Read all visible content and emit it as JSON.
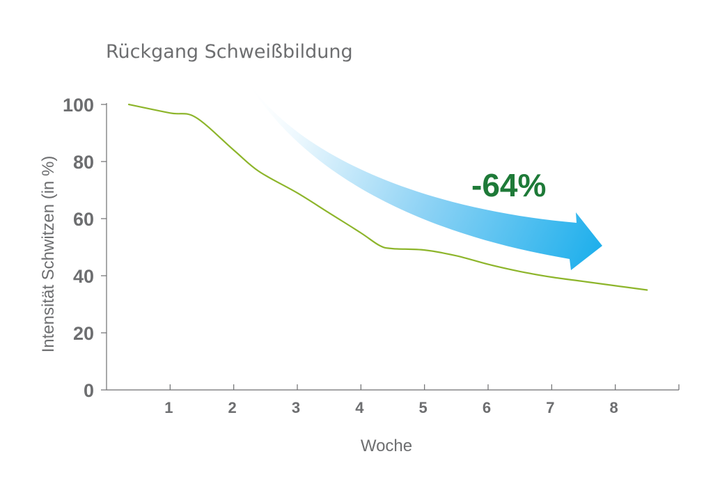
{
  "chart_data": {
    "type": "line",
    "title": "Rückgang Schweißbildung",
    "xlabel": "Woche",
    "ylabel": "Intensität Schwitzen (in %)",
    "xlim": [
      0,
      9
    ],
    "ylim": [
      0,
      100
    ],
    "x_ticks": [
      "1",
      "2",
      "3",
      "4",
      "5",
      "6",
      "7",
      "8"
    ],
    "y_ticks": [
      "0",
      "20",
      "40",
      "60",
      "80",
      "100"
    ],
    "series": [
      {
        "x": [
          0.35,
          1.0,
          1.4,
          2.0,
          2.4,
          3.0,
          3.5,
          4.0,
          4.3,
          4.5,
          5.0,
          5.5,
          6.0,
          6.5,
          7.0,
          7.5,
          8.0,
          8.5
        ],
        "y": [
          100,
          97,
          95.5,
          84,
          76.5,
          69,
          62,
          55,
          50.5,
          49.5,
          49,
          47,
          44,
          41.5,
          39.5,
          38,
          36.5,
          35
        ],
        "color": "#8db52b"
      }
    ],
    "annotation": {
      "text": "-64%",
      "color": "#1e7a38",
      "arrow_color": "#21b0ec"
    },
    "grid": false
  }
}
